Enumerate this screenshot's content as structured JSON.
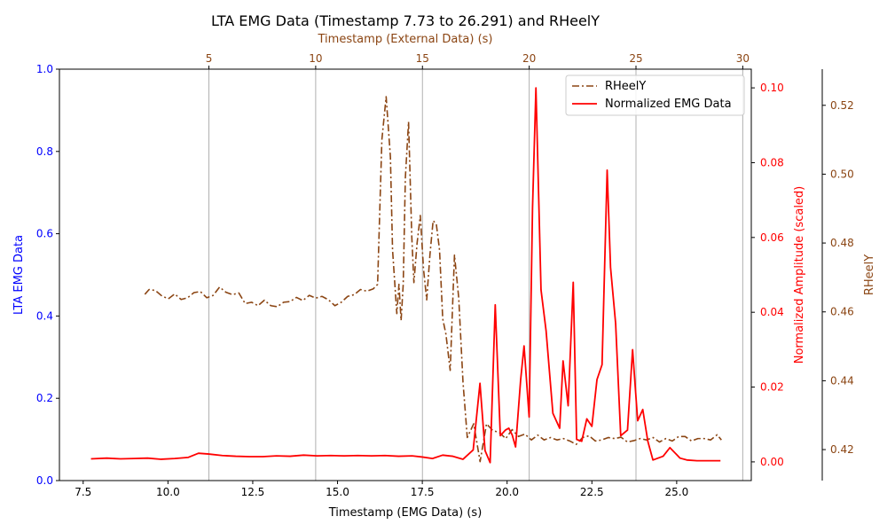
{
  "chart_data": {
    "type": "line",
    "title": "LTA EMG Data (Timestamp 7.73 to 26.291) and RHeelY",
    "xlabel_bottom": "Timestamp (EMG Data) (s)",
    "xlabel_top": "Timestamp (External Data) (s)",
    "ylabel_left": "LTA EMG Data",
    "ylabel_right1": "Normalized Amplitude (scaled)",
    "ylabel_right2": "RHeelY",
    "x_bottom": {
      "range": [
        6.8,
        27.2
      ],
      "ticks": [
        7.5,
        10.0,
        12.5,
        15.0,
        17.5,
        20.0,
        22.5,
        25.0
      ],
      "tick_labels": [
        "7.5",
        "10.0",
        "12.5",
        "15.0",
        "17.5",
        "20.0",
        "22.5",
        "25.0"
      ]
    },
    "x_top": {
      "range": [
        -2.0,
        30.4
      ],
      "ticks": [
        5,
        10,
        15,
        20,
        25,
        30
      ],
      "tick_labels": [
        "5",
        "10",
        "15",
        "20",
        "25",
        "30"
      ]
    },
    "y_left": {
      "range": [
        0.0,
        1.0
      ],
      "ticks": [
        0.0,
        0.2,
        0.4,
        0.6,
        0.8,
        1.0
      ],
      "tick_labels": [
        "0.0",
        "0.2",
        "0.4",
        "0.6",
        "0.8",
        "1.0"
      ]
    },
    "y_right1": {
      "range": [
        -0.005,
        0.105
      ],
      "ticks": [
        0.0,
        0.02,
        0.04,
        0.06,
        0.08,
        0.1
      ],
      "tick_labels": [
        "0.00",
        "0.02",
        "0.04",
        "0.06",
        "0.08",
        "0.10"
      ]
    },
    "y_right2": {
      "range": [
        0.411,
        0.5305
      ],
      "ticks": [
        0.42,
        0.44,
        0.46,
        0.48,
        0.5,
        0.52
      ],
      "tick_labels": [
        "0.42",
        "0.44",
        "0.46",
        "0.48",
        "0.50",
        "0.52"
      ]
    },
    "grid": "vertical lines at top-axis ticks",
    "legend": {
      "placement": "top-right",
      "entries": [
        "RHeelY",
        "Normalized EMG Data"
      ]
    },
    "colors": {
      "rheely": "#8B4513",
      "emg": "#ff0000",
      "left_axis": "#0000ff",
      "right1_axis": "#ff0000",
      "right2_axis": "#8B4513",
      "grid": "#b0b0b0"
    },
    "series": [
      {
        "name": "RHeelY",
        "axis": "top-x / right2-y",
        "style": "dashdot",
        "x": [
          2.0,
          2.2,
          2.5,
          2.8,
          3.1,
          3.4,
          3.7,
          4.0,
          4.3,
          4.6,
          4.9,
          5.2,
          5.5,
          5.8,
          6.1,
          6.4,
          6.7,
          7.0,
          7.3,
          7.6,
          7.9,
          8.2,
          8.5,
          8.8,
          9.1,
          9.4,
          9.7,
          10.0,
          10.3,
          10.6,
          10.9,
          11.2,
          11.5,
          11.8,
          12.1,
          12.4,
          12.7,
          12.9,
          13.1,
          13.3,
          13.5,
          13.6,
          13.8,
          13.9,
          14.0,
          14.1,
          14.2,
          14.35,
          14.5,
          14.6,
          14.75,
          14.9,
          15.05,
          15.2,
          15.35,
          15.5,
          15.65,
          15.8,
          15.95,
          16.1,
          16.3,
          16.5,
          16.7,
          16.9,
          17.1,
          17.4,
          17.7,
          18.0,
          18.3,
          18.6,
          18.9,
          19.2,
          19.5,
          19.8,
          20.1,
          20.4,
          20.7,
          21.0,
          21.3,
          21.6,
          21.9,
          22.2,
          22.5,
          22.8,
          23.1,
          23.4,
          23.7,
          24.0,
          24.3,
          24.6,
          24.9,
          25.2,
          25.5,
          25.8,
          26.1,
          26.4,
          26.7,
          27.0,
          27.3,
          27.6,
          27.9,
          28.2,
          28.5,
          28.8,
          29.0
        ],
        "y": [
          0.4651,
          0.4665,
          0.4662,
          0.4646,
          0.4638,
          0.4652,
          0.4636,
          0.4641,
          0.4656,
          0.4659,
          0.4641,
          0.4648,
          0.4672,
          0.4657,
          0.465,
          0.4655,
          0.4624,
          0.4628,
          0.4618,
          0.4634,
          0.4618,
          0.4615,
          0.4628,
          0.463,
          0.4642,
          0.4633,
          0.4648,
          0.464,
          0.4645,
          0.4635,
          0.4618,
          0.4628,
          0.4645,
          0.465,
          0.4665,
          0.466,
          0.4667,
          0.468,
          0.51,
          0.5225,
          0.505,
          0.478,
          0.4595,
          0.468,
          0.4575,
          0.468,
          0.499,
          0.5152,
          0.482,
          0.4685,
          0.48,
          0.488,
          0.4725,
          0.4635,
          0.4765,
          0.4865,
          0.4855,
          0.478,
          0.458,
          0.4535,
          0.443,
          0.4765,
          0.464,
          0.4395,
          0.4235,
          0.4275,
          0.4165,
          0.4275,
          0.4255,
          0.425,
          0.4232,
          0.4258,
          0.4238,
          0.4245,
          0.4228,
          0.4242,
          0.4228,
          0.4235,
          0.4228,
          0.4232,
          0.4225,
          0.4215,
          0.4235,
          0.424,
          0.4225,
          0.4228,
          0.4235,
          0.4232,
          0.4236,
          0.4222,
          0.4226,
          0.4232,
          0.4228,
          0.4235,
          0.4222,
          0.4232,
          0.4225,
          0.4238,
          0.4238,
          0.4225,
          0.4232,
          0.4232,
          0.4228,
          0.4243,
          0.4228
        ]
      },
      {
        "name": "Normalized EMG Data",
        "axis": "bottom-x / right1-y",
        "style": "solid",
        "x": [
          7.73,
          8.2,
          8.6,
          9.0,
          9.4,
          9.8,
          10.2,
          10.6,
          10.9,
          11.2,
          11.6,
          12.0,
          12.4,
          12.8,
          13.2,
          13.6,
          14.0,
          14.4,
          14.8,
          15.2,
          15.6,
          16.0,
          16.4,
          16.8,
          17.2,
          17.5,
          17.8,
          18.1,
          18.4,
          18.7,
          19.0,
          19.2,
          19.35,
          19.5,
          19.65,
          19.8,
          19.95,
          20.05,
          20.15,
          20.25,
          20.4,
          20.5,
          20.65,
          20.75,
          20.85,
          21.0,
          21.15,
          21.35,
          21.55,
          21.65,
          21.8,
          21.95,
          22.05,
          22.2,
          22.35,
          22.5,
          22.65,
          22.8,
          22.95,
          23.05,
          23.2,
          23.35,
          23.55,
          23.7,
          23.85,
          24.0,
          24.15,
          24.3,
          24.45,
          24.6,
          24.8,
          25.1,
          25.3,
          25.6,
          26.0,
          26.291
        ],
        "y": [
          0.0008,
          0.001,
          0.0008,
          0.0009,
          0.001,
          0.0007,
          0.0009,
          0.0012,
          0.0023,
          0.0021,
          0.0017,
          0.0015,
          0.0014,
          0.0014,
          0.0016,
          0.0015,
          0.0018,
          0.0016,
          0.0017,
          0.0016,
          0.0017,
          0.0016,
          0.0017,
          0.0015,
          0.0016,
          0.0013,
          0.0009,
          0.0018,
          0.0015,
          0.0007,
          0.0032,
          0.021,
          0.003,
          -0.0002,
          0.042,
          0.007,
          0.0085,
          0.009,
          0.0072,
          0.004,
          0.022,
          0.031,
          0.012,
          0.068,
          0.1,
          0.046,
          0.035,
          0.013,
          0.009,
          0.027,
          0.015,
          0.048,
          0.006,
          0.0055,
          0.0115,
          0.0095,
          0.022,
          0.026,
          0.078,
          0.052,
          0.037,
          0.007,
          0.0085,
          0.03,
          0.011,
          0.014,
          0.0055,
          0.0005,
          0.001,
          0.0015,
          0.0038,
          0.001,
          0.0005,
          0.0003,
          0.0003,
          0.0003
        ]
      }
    ]
  }
}
